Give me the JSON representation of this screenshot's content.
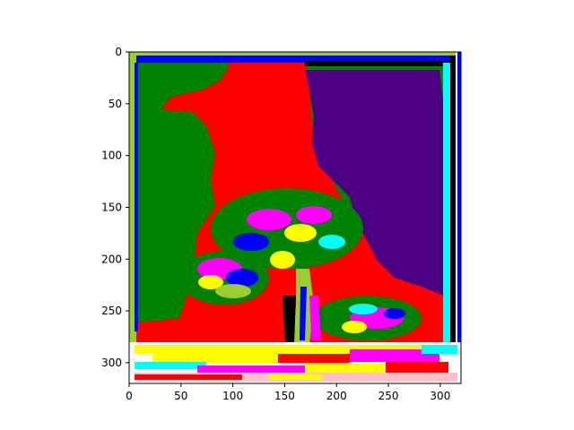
{
  "chart_data": {
    "type": "heatmap",
    "title": "",
    "xlabel": "",
    "ylabel": "",
    "xlim": [
      0,
      320
    ],
    "ylim": [
      320,
      0
    ],
    "x_ticks": [
      0,
      50,
      100,
      150,
      200,
      250,
      300
    ],
    "y_ticks": [
      0,
      50,
      100,
      150,
      200,
      250,
      300
    ],
    "grid": false,
    "legend": "none",
    "image_description_regions": [
      {
        "label": "left",
        "color": "#008000"
      },
      {
        "label": "background-middle",
        "color": "#ff0000"
      },
      {
        "label": "right",
        "color": "#4b0082"
      },
      {
        "label": "frame-top",
        "color": "#0000ff"
      },
      {
        "label": "frame-right",
        "color": "#00ffff"
      },
      {
        "label": "bottom-strip",
        "color": "#ffff00"
      }
    ],
    "palette": [
      "#008000",
      "#ff0000",
      "#4b0082",
      "#0000ff",
      "#00ffff",
      "#ffff00",
      "#ff00ff",
      "#9acd32",
      "#000000",
      "#ffffff",
      "#ffc0cb"
    ]
  }
}
